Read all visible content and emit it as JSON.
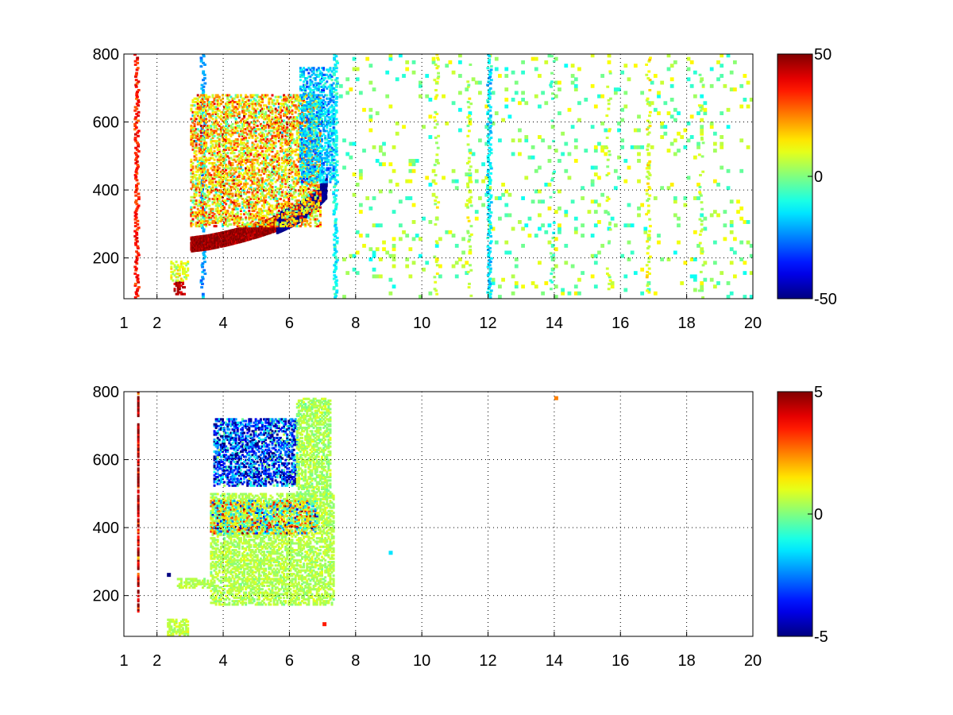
{
  "chart_data": [
    {
      "type": "heatmap",
      "title": "",
      "xlabel": "",
      "ylabel": "",
      "xlim": [
        1,
        20
      ],
      "ylim": [
        80,
        800
      ],
      "x_ticks": [
        1,
        2,
        4,
        6,
        8,
        10,
        12,
        14,
        16,
        18,
        20
      ],
      "y_ticks": [
        200,
        400,
        600,
        800
      ],
      "grid": true,
      "colormap": "jet",
      "missing_color": "#ffffff",
      "colorbar": {
        "range": [
          -50,
          50
        ],
        "ticks": [
          50,
          0,
          -50
        ],
        "placement": "right"
      },
      "features": [
        {
          "kind": "ridge",
          "x": [
            3.0,
            3.5,
            4.0,
            4.5,
            5.0,
            5.5,
            6.0
          ],
          "y": [
            238,
            244,
            254,
            266,
            280,
            296,
            316
          ],
          "value": 48,
          "thickness": 22
        },
        {
          "kind": "ridge",
          "x": [
            5.6,
            6.0,
            6.4,
            6.8,
            7.1
          ],
          "y": [
            300,
            318,
            340,
            375,
            405
          ],
          "value": -50,
          "thickness": 30
        },
        {
          "kind": "patch",
          "x": [
            3.0,
            6.9
          ],
          "y": [
            290,
            680
          ],
          "value": 16,
          "spread": 18
        },
        {
          "kind": "patch",
          "x": [
            6.3,
            7.3
          ],
          "y": [
            420,
            760
          ],
          "value": -18,
          "spread": 10
        },
        {
          "kind": "patch",
          "x": [
            2.5,
            2.8
          ],
          "y": [
            90,
            130
          ],
          "value": 45,
          "spread": 5
        },
        {
          "kind": "patch",
          "x": [
            2.4,
            2.9
          ],
          "y": [
            130,
            190
          ],
          "value": 10,
          "spread": 8
        }
      ],
      "stripes": [
        {
          "x": 1.35,
          "value": 35,
          "density": 0.9
        },
        {
          "x": 3.35,
          "value": -22,
          "density": 0.85
        },
        {
          "x": 7.35,
          "value": -12,
          "density": 0.9
        },
        {
          "x": 10.4,
          "value": 8,
          "density": 0.35
        },
        {
          "x": 11.4,
          "value": 6,
          "density": 0.35
        },
        {
          "x": 12.0,
          "value": -15,
          "density": 0.95
        },
        {
          "x": 13.9,
          "value": -4,
          "density": 0.25
        },
        {
          "x": 15.6,
          "value": 6,
          "density": 0.28
        },
        {
          "x": 16.8,
          "value": 10,
          "density": 0.4
        },
        {
          "x": 18.4,
          "value": 5,
          "density": 0.25
        }
      ],
      "sparse_points": {
        "x": [
          7.5,
          20
        ],
        "density": 0.07,
        "value_range": [
          -12,
          14
        ]
      }
    },
    {
      "type": "heatmap",
      "title": "",
      "xlabel": "",
      "ylabel": "",
      "xlim": [
        1,
        20
      ],
      "ylim": [
        80,
        800
      ],
      "x_ticks": [
        1,
        2,
        4,
        6,
        8,
        10,
        12,
        14,
        16,
        18,
        20
      ],
      "y_ticks": [
        200,
        400,
        600,
        800
      ],
      "grid": true,
      "colormap": "jet",
      "missing_color": "#ffffff",
      "colorbar": {
        "range": [
          -5,
          5
        ],
        "ticks": [
          5,
          0,
          -5
        ],
        "placement": "right"
      },
      "features": [
        {
          "kind": "region",
          "x": [
            3.6,
            7.3
          ],
          "y": [
            170,
            500
          ],
          "value": 0.5,
          "spread": 0.4
        },
        {
          "kind": "region",
          "x": [
            2.6,
            3.6
          ],
          "y": [
            220,
            250
          ],
          "value": 0.5,
          "spread": 0.3
        },
        {
          "kind": "region",
          "x": [
            2.3,
            2.9
          ],
          "y": [
            80,
            130
          ],
          "value": 0.6,
          "spread": 0.4
        },
        {
          "kind": "region",
          "x": [
            3.6,
            6.8
          ],
          "y": [
            380,
            480
          ],
          "value": 0.5,
          "spread": 3.0
        },
        {
          "kind": "region",
          "x": [
            3.7,
            6.2
          ],
          "y": [
            520,
            720
          ],
          "value": -3.2,
          "spread": 2.2
        },
        {
          "kind": "region",
          "x": [
            6.2,
            7.2
          ],
          "y": [
            480,
            780
          ],
          "value": 0.4,
          "spread": 0.5
        },
        {
          "kind": "line",
          "x": 1.4,
          "y": [
            150,
            800
          ],
          "value": 4.5
        }
      ],
      "isolated_points": [
        {
          "x": 14.0,
          "y": 775,
          "value": 2.5
        },
        {
          "x": 9.0,
          "y": 320,
          "value": -1.5
        },
        {
          "x": 7.0,
          "y": 110,
          "value": 3.5
        },
        {
          "x": 2.3,
          "y": 255,
          "value": -5.0
        }
      ]
    }
  ]
}
